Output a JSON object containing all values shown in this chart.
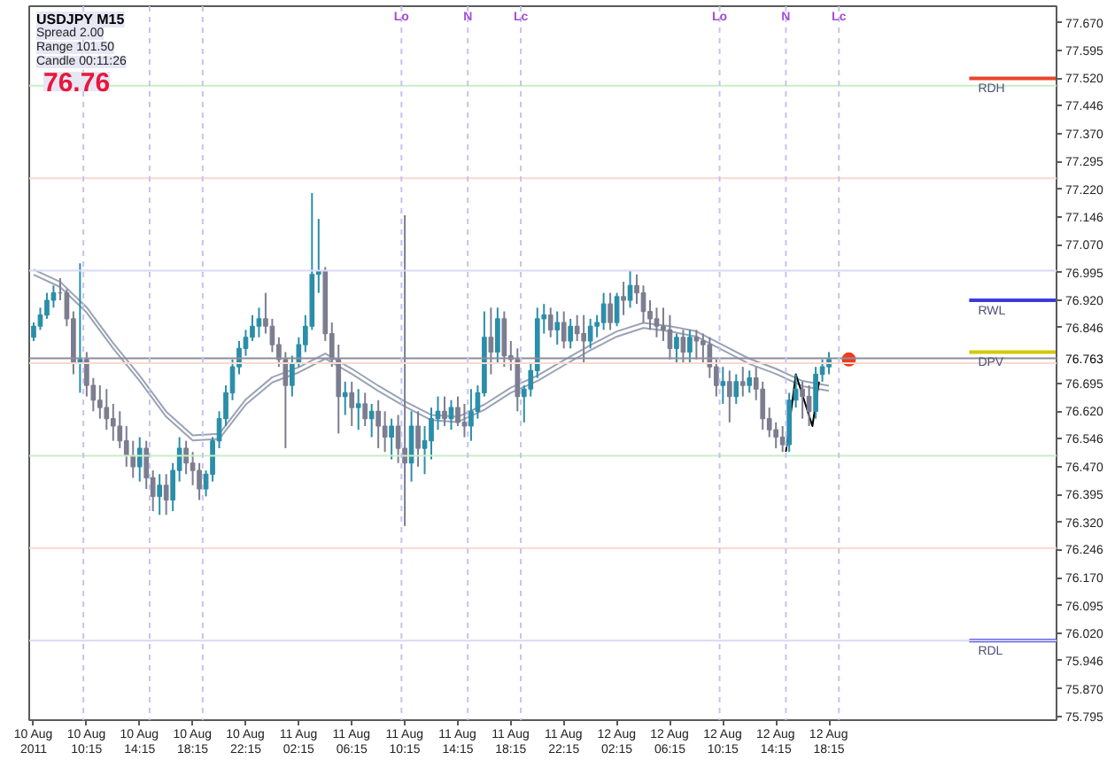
{
  "chart_data": {
    "type": "candlestick",
    "title": "USDJPY M15",
    "annotations": [
      "Spread 2.00",
      "Range 101.50",
      "Candle 00:11:26",
      "76.76",
      {
        "text": "76.763",
        "x": "2011-08-13T11:25",
        "y": 76.763
      }
    ],
    "x": [
      "2011-08-10T06:15",
      "2011-08-10T06:45",
      "2011-08-10T07:15",
      "2011-08-10T07:45",
      "2011-08-10T08:15",
      "2011-08-10T08:45",
      "2011-08-10T09:15",
      "2011-08-10T09:45",
      "2011-08-10T10:15",
      "2011-08-10T10:45",
      "2011-08-10T11:15",
      "2011-08-10T11:45",
      "2011-08-10T12:15",
      "2011-08-10T12:45",
      "2011-08-10T13:15",
      "2011-08-10T13:45",
      "2011-08-10T14:15",
      "2011-08-10T14:45",
      "2011-08-10T15:15",
      "2011-08-10T15:45",
      "2011-08-10T16:15",
      "2011-08-10T16:45",
      "2011-08-10T17:15",
      "2011-08-10T17:45",
      "2011-08-10T18:15",
      "2011-08-10T18:45",
      "2011-08-10T19:15",
      "2011-08-10T19:45",
      "2011-08-10T20:15",
      "2011-08-10T20:45",
      "2011-08-10T21:15",
      "2011-08-10T21:45",
      "2011-08-10T22:15",
      "2011-08-10T22:45",
      "2011-08-10T23:15",
      "2011-08-10T23:45",
      "2011-08-11T00:15",
      "2011-08-11T00:45",
      "2011-08-11T01:15",
      "2011-08-11T01:45",
      "2011-08-11T02:15",
      "2011-08-11T02:45",
      "2011-08-11T03:15",
      "2011-08-11T03:45",
      "2011-08-11T04:15",
      "2011-08-11T04:45",
      "2011-08-11T05:15",
      "2011-08-11T05:45",
      "2011-08-11T06:15",
      "2011-08-11T06:45",
      "2011-08-11T07:15",
      "2011-08-11T07:45",
      "2011-08-11T08:15",
      "2011-08-11T08:45",
      "2011-08-11T09:15",
      "2011-08-11T09:45",
      "2011-08-11T10:15",
      "2011-08-11T10:45",
      "2011-08-11T11:15",
      "2011-08-11T11:45",
      "2011-08-11T12:15",
      "2011-08-11T12:45",
      "2011-08-11T13:15",
      "2011-08-11T13:45",
      "2011-08-11T14:15",
      "2011-08-11T14:45",
      "2011-08-11T15:15",
      "2011-08-11T15:45",
      "2011-08-11T16:15",
      "2011-08-11T16:45",
      "2011-08-11T17:15",
      "2011-08-11T17:45",
      "2011-08-11T18:15",
      "2011-08-11T18:45",
      "2011-08-11T19:15",
      "2011-08-11T19:45",
      "2011-08-11T20:15",
      "2011-08-11T20:45",
      "2011-08-11T21:15",
      "2011-08-11T21:45",
      "2011-08-11T22:15",
      "2011-08-11T22:45",
      "2011-08-11T23:15",
      "2011-08-11T23:45",
      "2011-08-12T00:15",
      "2011-08-12T00:45",
      "2011-08-12T01:15",
      "2011-08-12T01:45",
      "2011-08-12T02:15",
      "2011-08-12T02:45",
      "2011-08-12T03:15",
      "2011-08-12T03:45",
      "2011-08-12T04:15",
      "2011-08-12T04:45",
      "2011-08-12T05:15",
      "2011-08-12T05:45",
      "2011-08-12T06:15",
      "2011-08-12T06:45",
      "2011-08-12T07:15",
      "2011-08-12T07:45",
      "2011-08-12T08:15",
      "2011-08-12T08:45",
      "2011-08-12T09:15",
      "2011-08-12T09:45",
      "2011-08-12T10:15",
      "2011-08-12T10:45",
      "2011-08-12T11:15",
      "2011-08-12T11:45",
      "2011-08-12T12:15",
      "2011-08-12T12:45",
      "2011-08-12T13:15",
      "2011-08-12T13:45",
      "2011-08-12T14:15",
      "2011-08-12T14:45",
      "2011-08-12T15:15",
      "2011-08-12T15:45",
      "2011-08-12T16:15",
      "2011-08-12T16:45",
      "2011-08-12T17:15",
      "2011-08-12T17:45",
      "2011-08-12T18:15"
    ],
    "ohlc": [
      [
        76.82,
        76.86,
        76.81,
        76.85
      ],
      [
        76.85,
        76.9,
        76.84,
        76.88
      ],
      [
        76.88,
        76.94,
        76.87,
        76.92
      ],
      [
        76.92,
        76.96,
        76.9,
        76.94
      ],
      [
        76.94,
        76.98,
        76.92,
        76.94
      ],
      [
        76.94,
        76.95,
        76.85,
        76.87
      ],
      [
        76.87,
        76.89,
        76.72,
        76.75
      ],
      [
        76.75,
        77.02,
        76.67,
        76.76
      ],
      [
        76.76,
        76.78,
        76.66,
        76.69
      ],
      [
        76.69,
        76.71,
        76.62,
        76.65
      ],
      [
        76.65,
        76.69,
        76.6,
        76.63
      ],
      [
        76.63,
        76.68,
        76.57,
        76.6
      ],
      [
        76.6,
        76.64,
        76.54,
        76.58
      ],
      [
        76.58,
        76.62,
        76.52,
        76.54
      ],
      [
        76.54,
        76.58,
        76.47,
        76.5
      ],
      [
        76.5,
        76.54,
        76.44,
        76.47
      ],
      [
        76.47,
        76.55,
        76.43,
        76.52
      ],
      [
        76.52,
        76.54,
        76.41,
        76.44
      ],
      [
        76.44,
        76.46,
        76.35,
        76.39
      ],
      [
        76.39,
        76.45,
        76.34,
        76.42
      ],
      [
        76.42,
        76.45,
        76.34,
        76.38
      ],
      [
        76.38,
        76.48,
        76.35,
        76.46
      ],
      [
        76.46,
        76.55,
        76.43,
        76.52
      ],
      [
        76.52,
        76.54,
        76.45,
        76.48
      ],
      [
        76.48,
        76.51,
        76.42,
        76.46
      ],
      [
        76.46,
        76.48,
        76.38,
        76.41
      ],
      [
        76.41,
        76.46,
        76.39,
        76.45
      ],
      [
        76.45,
        76.55,
        76.43,
        76.54
      ],
      [
        76.54,
        76.62,
        76.52,
        76.6
      ],
      [
        76.6,
        76.69,
        76.58,
        76.67
      ],
      [
        76.67,
        76.76,
        76.65,
        76.74
      ],
      [
        76.74,
        76.81,
        76.72,
        76.79
      ],
      [
        76.79,
        76.84,
        76.77,
        76.82
      ],
      [
        76.82,
        76.88,
        76.81,
        76.85
      ],
      [
        76.85,
        76.9,
        76.82,
        76.87
      ],
      [
        76.87,
        76.94,
        76.83,
        76.85
      ],
      [
        76.85,
        76.87,
        76.78,
        76.8
      ],
      [
        76.8,
        76.82,
        76.74,
        76.76
      ],
      [
        76.76,
        76.78,
        76.52,
        76.69
      ],
      [
        76.69,
        76.77,
        76.66,
        76.75
      ],
      [
        76.75,
        76.82,
        76.74,
        76.8
      ],
      [
        76.8,
        76.88,
        76.78,
        76.85
      ],
      [
        76.85,
        77.21,
        76.84,
        76.99
      ],
      [
        76.99,
        77.14,
        76.94,
        77.0
      ],
      [
        77.0,
        77.01,
        76.81,
        76.83
      ],
      [
        76.83,
        76.86,
        76.74,
        76.76
      ],
      [
        76.76,
        76.8,
        76.56,
        76.66
      ],
      [
        76.66,
        76.7,
        76.61,
        76.67
      ],
      [
        76.67,
        76.7,
        76.58,
        76.63
      ],
      [
        76.63,
        76.68,
        76.57,
        76.64
      ],
      [
        76.64,
        76.67,
        76.58,
        76.6
      ],
      [
        76.6,
        76.64,
        76.55,
        76.62
      ],
      [
        76.62,
        76.65,
        76.52,
        76.58
      ],
      [
        76.58,
        76.62,
        76.51,
        76.55
      ],
      [
        76.55,
        76.6,
        76.49,
        76.58
      ],
      [
        76.58,
        76.61,
        76.48,
        76.52
      ],
      [
        76.52,
        77.15,
        76.31,
        76.48
      ],
      [
        76.48,
        76.62,
        76.43,
        76.58
      ],
      [
        76.58,
        76.62,
        76.47,
        76.52
      ],
      [
        76.52,
        76.58,
        76.45,
        76.54
      ],
      [
        76.54,
        76.63,
        76.49,
        76.6
      ],
      [
        76.6,
        76.66,
        76.57,
        76.62
      ],
      [
        76.62,
        76.66,
        76.58,
        76.6
      ],
      [
        76.6,
        76.65,
        76.57,
        76.63
      ],
      [
        76.63,
        76.66,
        76.58,
        76.59
      ],
      [
        76.59,
        76.64,
        76.55,
        76.58
      ],
      [
        76.58,
        76.68,
        76.54,
        76.62
      ],
      [
        76.62,
        76.69,
        76.6,
        76.67
      ],
      [
        76.67,
        76.89,
        76.66,
        76.82
      ],
      [
        76.82,
        76.9,
        76.72,
        76.78
      ],
      [
        76.78,
        76.9,
        76.75,
        76.87
      ],
      [
        76.87,
        76.89,
        76.74,
        76.77
      ],
      [
        76.77,
        76.81,
        76.73,
        76.76
      ],
      [
        76.76,
        76.79,
        76.62,
        76.66
      ],
      [
        76.66,
        76.69,
        76.59,
        76.68
      ],
      [
        76.68,
        76.75,
        76.66,
        76.73
      ],
      [
        76.73,
        76.9,
        76.71,
        76.87
      ],
      [
        76.87,
        76.91,
        76.83,
        76.88
      ],
      [
        76.88,
        76.9,
        76.82,
        76.84
      ],
      [
        76.84,
        76.89,
        76.8,
        76.86
      ],
      [
        76.86,
        76.89,
        76.79,
        76.81
      ],
      [
        76.81,
        76.87,
        76.79,
        76.85
      ],
      [
        76.85,
        76.88,
        76.81,
        76.83
      ],
      [
        76.83,
        76.88,
        76.75,
        76.81
      ],
      [
        76.81,
        76.87,
        76.79,
        76.85
      ],
      [
        76.85,
        76.88,
        76.82,
        76.86
      ],
      [
        76.86,
        76.94,
        76.84,
        76.91
      ],
      [
        76.91,
        76.94,
        76.84,
        76.86
      ],
      [
        76.86,
        76.94,
        76.85,
        76.93
      ],
      [
        76.93,
        76.97,
        76.88,
        76.92
      ],
      [
        76.92,
        77.0,
        76.9,
        76.96
      ],
      [
        76.96,
        76.99,
        76.91,
        76.94
      ],
      [
        76.94,
        76.96,
        76.86,
        76.89
      ],
      [
        76.89,
        76.92,
        76.84,
        76.87
      ],
      [
        76.87,
        76.9,
        76.82,
        76.85
      ],
      [
        76.85,
        76.9,
        76.81,
        76.84
      ],
      [
        76.84,
        76.88,
        76.76,
        76.79
      ],
      [
        76.79,
        76.83,
        76.75,
        76.82
      ],
      [
        76.82,
        76.84,
        76.75,
        76.78
      ],
      [
        76.78,
        76.84,
        76.75,
        76.82
      ],
      [
        76.82,
        76.84,
        76.76,
        76.81
      ],
      [
        76.81,
        76.83,
        76.75,
        76.8
      ],
      [
        76.8,
        76.82,
        76.71,
        76.74
      ],
      [
        76.74,
        76.76,
        76.66,
        76.69
      ],
      [
        76.69,
        76.74,
        76.64,
        76.7
      ],
      [
        76.7,
        76.73,
        76.59,
        76.66
      ],
      [
        76.66,
        76.72,
        76.64,
        76.7
      ],
      [
        76.7,
        76.74,
        76.66,
        76.69
      ],
      [
        76.69,
        76.73,
        76.67,
        76.71
      ],
      [
        76.71,
        76.74,
        76.65,
        76.68
      ],
      [
        76.68,
        76.7,
        76.57,
        76.6
      ],
      [
        76.6,
        76.63,
        76.55,
        76.57
      ],
      [
        76.57,
        76.59,
        76.52,
        76.55
      ],
      [
        76.55,
        76.58,
        76.51,
        76.53
      ],
      [
        76.53,
        76.67,
        76.51,
        76.65
      ],
      [
        76.65,
        76.72,
        76.63,
        76.68
      ],
      [
        76.68,
        76.7,
        76.6,
        76.66
      ],
      [
        76.66,
        76.69,
        76.58,
        76.62
      ],
      [
        76.62,
        76.74,
        76.6,
        76.72
      ],
      [
        76.72,
        76.76,
        76.7,
        76.74
      ],
      [
        76.74,
        76.78,
        76.72,
        76.76
      ]
    ],
    "colors": [
      "#2b8ea8",
      "#2b8ea8",
      "#2b8ea8",
      "#2b8ea8",
      "#7d7d90",
      "#7d7d90",
      "#7d7d90",
      "#2b8ea8",
      "#7d7d90",
      "#7d7d90",
      "#7d7d90",
      "#7d7d90",
      "#7d7d90",
      "#7d7d90",
      "#7d7d90",
      "#7d7d90",
      "#2b8ea8",
      "#7d7d90",
      "#7d7d90",
      "#2b8ea8",
      "#7d7d90",
      "#2b8ea8",
      "#2b8ea8",
      "#7d7d90",
      "#7d7d90",
      "#7d7d90",
      "#2b8ea8",
      "#2b8ea8",
      "#2b8ea8",
      "#2b8ea8",
      "#2b8ea8",
      "#2b8ea8",
      "#2b8ea8",
      "#2b8ea8",
      "#2b8ea8",
      "#7d7d90",
      "#7d7d90",
      "#7d7d90",
      "#7d7d90",
      "#2b8ea8",
      "#2b8ea8",
      "#2b8ea8",
      "#2b8ea8",
      "#2b8ea8",
      "#7d7d90",
      "#7d7d90",
      "#7d7d90",
      "#2b8ea8",
      "#7d7d90",
      "#2b8ea8",
      "#7d7d90",
      "#2b8ea8",
      "#7d7d90",
      "#7d7d90",
      "#2b8ea8",
      "#7d7d90",
      "#7d7d90",
      "#2b8ea8",
      "#7d7d90",
      "#2b8ea8",
      "#2b8ea8",
      "#2b8ea8",
      "#7d7d90",
      "#2b8ea8",
      "#7d7d90",
      "#7d7d90",
      "#2b8ea8",
      "#2b8ea8",
      "#2b8ea8",
      "#7d7d90",
      "#2b8ea8",
      "#7d7d90",
      "#7d7d90",
      "#7d7d90",
      "#2b8ea8",
      "#2b8ea8",
      "#2b8ea8",
      "#2b8ea8",
      "#7d7d90",
      "#2b8ea8",
      "#7d7d90",
      "#2b8ea8",
      "#7d7d90",
      "#7d7d90",
      "#2b8ea8",
      "#2b8ea8",
      "#2b8ea8",
      "#7d7d90",
      "#2b8ea8",
      "#7d7d90",
      "#2b8ea8",
      "#7d7d90",
      "#7d7d90",
      "#7d7d90",
      "#7d7d90",
      "#7d7d90",
      "#7d7d90",
      "#2b8ea8",
      "#7d7d90",
      "#2b8ea8",
      "#7d7d90",
      "#7d7d90",
      "#7d7d90",
      "#7d7d90",
      "#2b8ea8",
      "#7d7d90",
      "#2b8ea8",
      "#7d7d90",
      "#2b8ea8",
      "#7d7d90",
      "#7d7d90",
      "#7d7d90",
      "#7d7d90",
      "#7d7d90",
      "#2b8ea8",
      "#2b8ea8",
      "#7d7d90",
      "#7d7d90",
      "#2b8ea8",
      "#2b8ea8",
      "#2b8ea8"
    ],
    "series": [
      {
        "type": "line",
        "color": "#9aa3b5",
        "x": [
          "2011-08-10T06:15",
          "2011-08-10T08:15",
          "2011-08-10T10:15",
          "2011-08-10T12:15",
          "2011-08-10T14:15",
          "2011-08-10T16:15",
          "2011-08-10T18:15",
          "2011-08-10T20:15",
          "2011-08-10T22:15",
          "2011-08-11T00:15",
          "2011-08-11T02:15",
          "2011-08-11T04:15",
          "2011-08-11T06:15",
          "2011-08-11T08:15",
          "2011-08-11T10:15",
          "2011-08-11T12:15",
          "2011-08-11T14:15",
          "2011-08-11T16:15",
          "2011-08-11T18:15",
          "2011-08-11T20:15",
          "2011-08-11T22:15",
          "2011-08-12T00:15",
          "2011-08-12T02:15",
          "2011-08-12T04:15",
          "2011-08-12T06:15",
          "2011-08-12T08:15",
          "2011-08-12T10:15",
          "2011-08-12T12:15",
          "2011-08-12T14:15",
          "2011-08-12T16:15",
          "2011-08-12T18:15"
        ],
        "values": [
          77.003,
          76.97,
          76.901,
          76.804,
          76.716,
          76.619,
          76.555,
          76.559,
          76.652,
          76.712,
          76.739,
          76.776,
          76.735,
          76.689,
          76.647,
          76.61,
          76.605,
          76.638,
          76.684,
          76.716,
          76.758,
          76.799,
          76.836,
          76.859,
          76.85,
          76.836,
          76.799,
          76.762,
          76.735,
          76.702,
          76.689
        ]
      },
      {
        "type": "line",
        "color": "#9aa3b5",
        "x": [
          "2011-08-10T06:15",
          "2011-08-10T08:15",
          "2011-08-10T10:15",
          "2011-08-10T12:15",
          "2011-08-10T14:15",
          "2011-08-10T16:15",
          "2011-08-10T18:15",
          "2011-08-10T20:15",
          "2011-08-10T22:15",
          "2011-08-11T00:15",
          "2011-08-11T02:15",
          "2011-08-11T04:15",
          "2011-08-11T06:15",
          "2011-08-11T08:15",
          "2011-08-11T10:15",
          "2011-08-11T12:15",
          "2011-08-11T14:15",
          "2011-08-11T16:15",
          "2011-08-11T18:15",
          "2011-08-11T20:15",
          "2011-08-11T22:15",
          "2011-08-12T00:15",
          "2011-08-12T02:15",
          "2011-08-12T04:15",
          "2011-08-12T06:15",
          "2011-08-12T08:15",
          "2011-08-12T10:15",
          "2011-08-12T12:15",
          "2011-08-12T14:15",
          "2011-08-12T16:15",
          "2011-08-12T18:15"
        ],
        "values": [
          76.989,
          76.956,
          76.887,
          76.79,
          76.702,
          76.605,
          76.541,
          76.545,
          76.638,
          76.698,
          76.725,
          76.762,
          76.721,
          76.675,
          76.633,
          76.596,
          76.591,
          76.624,
          76.67,
          76.702,
          76.744,
          76.785,
          76.822,
          76.845,
          76.836,
          76.822,
          76.785,
          76.748,
          76.721,
          76.688,
          76.675
        ]
      },
      {
        "type": "line",
        "color": "#000000",
        "x": [
          "2011-08-12T15:00",
          "2011-08-12T15:45",
          "2011-08-12T17:00",
          "2011-08-12T17:30"
        ],
        "values": [
          76.51,
          76.72,
          76.58,
          76.7
        ]
      },
      {
        "type": "scatter",
        "color": "#f03c1e",
        "marker": "circle",
        "x": [
          "2011-08-12T19:45"
        ],
        "values": [
          76.76
        ]
      }
    ],
    "xlim": [
      "2011-08-10T05:55",
      "2011-08-13T11:25"
    ],
    "xticks": [
      {
        "value": "2011-08-10T06:15",
        "label": "10 Aug 2011"
      },
      {
        "value": "2011-08-10T10:15",
        "label": "10 Aug 10:15"
      },
      {
        "value": "2011-08-10T14:15",
        "label": "10 Aug 14:15"
      },
      {
        "value": "2011-08-10T18:15",
        "label": "10 Aug 18:15"
      },
      {
        "value": "2011-08-10T22:15",
        "label": "10 Aug 22:15"
      },
      {
        "value": "2011-08-11T02:15",
        "label": "11 Aug 02:15"
      },
      {
        "value": "2011-08-11T06:15",
        "label": "11 Aug 06:15"
      },
      {
        "value": "2011-08-11T10:15",
        "label": "11 Aug 10:15"
      },
      {
        "value": "2011-08-11T14:15",
        "label": "11 Aug 14:15"
      },
      {
        "value": "2011-08-11T18:15",
        "label": "11 Aug 18:15"
      },
      {
        "value": "2011-08-11T22:15",
        "label": "11 Aug 22:15"
      },
      {
        "value": "2011-08-12T02:15",
        "label": "12 Aug 02:15"
      },
      {
        "value": "2011-08-12T06:15",
        "label": "12 Aug 06:15"
      },
      {
        "value": "2011-08-12T10:15",
        "label": "12 Aug 10:15"
      },
      {
        "value": "2011-08-12T14:15",
        "label": "12 Aug 14:15"
      },
      {
        "value": "2011-08-12T18:15",
        "label": "12 Aug 18:15"
      }
    ],
    "ylim": [
      75.785,
      77.715
    ],
    "yticks": [
      {
        "value": 77.67,
        "label": "77.670"
      },
      77.595,
      {
        "value": 77.52,
        "label": "77.520"
      },
      77.446,
      {
        "value": 77.37,
        "label": "77.370"
      },
      77.295,
      {
        "value": 77.22,
        "label": "77.220"
      },
      77.146,
      {
        "value": 77.07,
        "label": "77.070"
      },
      76.995,
      {
        "value": 76.92,
        "label": "76.920"
      },
      76.846,
      76.695,
      {
        "value": 76.62,
        "label": "76.620"
      },
      76.546,
      {
        "value": 76.47,
        "label": "76.470"
      },
      76.395,
      {
        "value": 76.32,
        "label": "76.320"
      },
      76.246,
      {
        "value": 76.17,
        "label": "76.170"
      },
      76.095,
      {
        "value": 76.02,
        "label": "76.020"
      },
      75.946,
      {
        "value": 75.87,
        "label": "75.870"
      },
      75.795
    ],
    "ref_lines": [
      {
        "axis": "y",
        "value": 77.5,
        "color": "#c6efc6"
      },
      {
        "axis": "y",
        "value": 77.25,
        "color": "#f6d9cf"
      },
      {
        "axis": "y",
        "value": 77.0,
        "color": "#d9d9f6"
      },
      {
        "axis": "y",
        "value": 76.75,
        "color": "#f6d9cf"
      },
      {
        "axis": "y",
        "value": 76.5,
        "color": "#c6efc6"
      },
      {
        "axis": "y",
        "value": 76.25,
        "color": "#f6d9cf"
      },
      {
        "axis": "y",
        "value": 76.0,
        "color": "#d9d9f6"
      },
      {
        "axis": "y",
        "value": 76.763,
        "color": "#8c8c9c"
      },
      {
        "axis": "y",
        "value": 77.52,
        "label": "RDH",
        "color": "#e8452c"
      },
      {
        "axis": "y",
        "value": 76.92,
        "label": "RWL",
        "color": "#3a3ae0"
      },
      {
        "axis": "y",
        "value": 76.78,
        "label": "DPV",
        "color": "#d4c800"
      },
      {
        "axis": "y",
        "value": 76.0,
        "label": "RDL",
        "color": "#3a3ae0"
      },
      {
        "axis": "x",
        "value": "2011-08-10T10:00",
        "color": "#c4c4ee",
        "line_style": "dashed"
      },
      {
        "axis": "x",
        "value": "2011-08-10T15:00",
        "color": "#c4c4ee",
        "line_style": "dashed"
      },
      {
        "axis": "x",
        "value": "2011-08-10T19:00",
        "color": "#c4c4ee",
        "line_style": "dashed"
      },
      {
        "axis": "x",
        "value": "2011-08-11T10:00",
        "label": "Lo",
        "color": "#c4c4ee",
        "line_style": "dashed"
      },
      {
        "axis": "x",
        "value": "2011-08-11T15:00",
        "label": "N",
        "color": "#c4c4ee",
        "line_style": "dashed"
      },
      {
        "axis": "x",
        "value": "2011-08-11T19:00",
        "label": "Lc",
        "color": "#c4c4ee",
        "line_style": "dashed"
      },
      {
        "axis": "x",
        "value": "2011-08-12T10:00",
        "label": "Lo",
        "color": "#c4c4ee",
        "line_style": "dashed"
      },
      {
        "axis": "x",
        "value": "2011-08-12T15:00",
        "label": "N",
        "color": "#c4c4ee",
        "line_style": "dashed"
      },
      {
        "axis": "x",
        "value": "2011-08-12T19:00",
        "label": "Lc",
        "color": "#c4c4ee",
        "line_style": "dashed"
      }
    ],
    "grid": false
  }
}
